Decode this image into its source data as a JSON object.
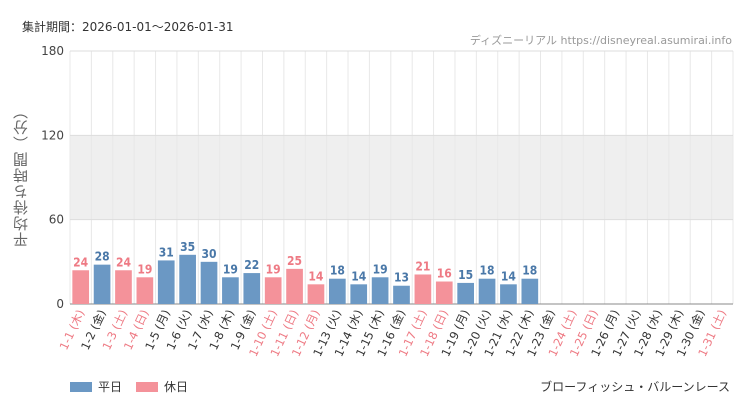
{
  "header": {
    "period_label": "集計期間：2026-01-01〜2026-01-31",
    "source_label": "ディズニーリアル https://disneyreal.asumirai.info"
  },
  "colors": {
    "weekday": "#6b98c4",
    "holiday": "#f4929a",
    "weekday_text": "#4a78a8",
    "holiday_text": "#ee7a84",
    "band": "#efefef",
    "grid": "#dddddd"
  },
  "legend": {
    "weekday_label": "平日",
    "holiday_label": "休日"
  },
  "attraction_name": "ブローフィッシュ・バルーンレース",
  "chart_data": {
    "type": "bar",
    "title": "",
    "ylabel": "平均待ち時間（分）",
    "xlabel": "",
    "ylim": [
      0,
      180
    ],
    "yticks": [
      0,
      60,
      120,
      180
    ],
    "shaded_band": [
      60,
      120
    ],
    "categories": [
      "1-1 (木)",
      "1-2 (金)",
      "1-3 (土)",
      "1-4 (日)",
      "1-5 (月)",
      "1-6 (火)",
      "1-7 (水)",
      "1-8 (木)",
      "1-9 (金)",
      "1-10 (土)",
      "1-11 (日)",
      "1-12 (月)",
      "1-13 (火)",
      "1-14 (水)",
      "1-15 (木)",
      "1-16 (金)",
      "1-17 (土)",
      "1-18 (日)",
      "1-19 (月)",
      "1-20 (火)",
      "1-21 (水)",
      "1-22 (木)",
      "1-23 (金)",
      "1-24 (土)",
      "1-25 (日)",
      "1-26 (月)",
      "1-27 (火)",
      "1-28 (水)",
      "1-29 (木)",
      "1-30 (金)",
      "1-31 (土)"
    ],
    "values": [
      24,
      28,
      24,
      19,
      31,
      35,
      30,
      19,
      22,
      19,
      25,
      14,
      18,
      14,
      19,
      13,
      21,
      16,
      15,
      18,
      14,
      18,
      null,
      null,
      null,
      null,
      null,
      null,
      null,
      null,
      null
    ],
    "day_type": [
      "holiday",
      "weekday",
      "holiday",
      "holiday",
      "weekday",
      "weekday",
      "weekday",
      "weekday",
      "weekday",
      "holiday",
      "holiday",
      "holiday",
      "weekday",
      "weekday",
      "weekday",
      "weekday",
      "holiday",
      "holiday",
      "weekday",
      "weekday",
      "weekday",
      "weekday",
      "weekday",
      "holiday",
      "holiday",
      "weekday",
      "weekday",
      "weekday",
      "weekday",
      "weekday",
      "holiday"
    ],
    "series": [
      {
        "name": "平日",
        "color": "#6b98c4"
      },
      {
        "name": "休日",
        "color": "#f4929a"
      }
    ],
    "grid": true,
    "legend_position": "bottom-left"
  }
}
